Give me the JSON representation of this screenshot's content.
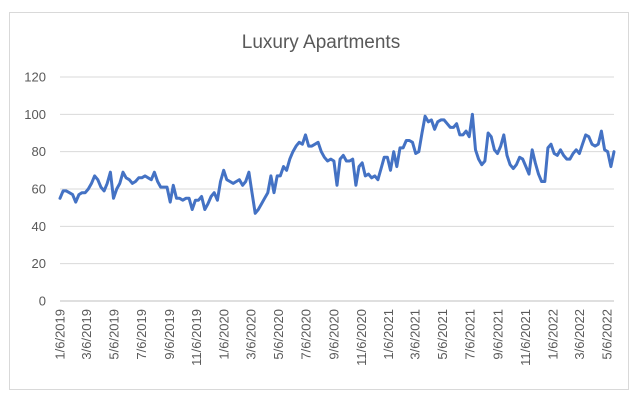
{
  "chart_data": {
    "type": "line",
    "title": "Luxury Apartments",
    "xlabel": "",
    "ylabel": "",
    "ylim": [
      0,
      120
    ],
    "y_ticks": [
      0,
      20,
      40,
      60,
      80,
      100,
      120
    ],
    "grid": true,
    "legend": "none",
    "series_color": "#4472C4",
    "x_tick_labels": [
      "1/6/2019",
      "3/6/2019",
      "5/6/2019",
      "7/6/2019",
      "9/6/2019",
      "11/6/2019",
      "1/6/2020",
      "3/6/2020",
      "5/6/2020",
      "7/6/2020",
      "9/6/2020",
      "11/6/2020",
      "1/6/2021",
      "3/6/2021",
      "5/6/2021",
      "7/6/2021",
      "9/6/2021",
      "11/6/2021",
      "1/6/2022",
      "3/6/2022",
      "5/6/2022"
    ],
    "start_date": "1/6/2019",
    "series": [
      {
        "values": [
          55,
          59,
          59,
          58,
          57,
          53,
          57,
          58,
          58,
          60,
          63,
          67,
          65,
          61,
          59,
          63,
          69,
          55,
          60,
          63,
          69,
          66,
          65,
          63,
          64,
          66,
          66,
          67,
          66,
          65,
          69,
          64,
          61,
          61,
          61,
          53,
          62,
          55,
          55,
          54,
          55,
          55,
          49,
          54,
          54,
          56,
          49,
          52,
          56,
          58,
          54,
          64,
          70,
          65,
          64,
          63,
          64,
          65,
          62,
          64,
          69,
          58,
          47,
          49,
          52,
          55,
          58,
          67,
          58,
          67,
          67,
          72,
          70,
          76,
          80,
          83,
          85,
          84,
          89,
          83,
          83,
          84,
          85,
          80,
          77,
          75,
          76,
          75,
          62,
          76,
          78,
          75,
          75,
          76,
          62,
          72,
          74,
          67,
          68,
          66,
          67,
          65,
          71,
          77,
          77,
          70,
          80,
          72,
          82,
          82,
          86,
          86,
          85,
          79,
          80,
          90,
          99,
          96,
          97,
          92,
          96,
          97,
          97,
          95,
          93,
          93,
          95,
          89,
          89,
          91,
          88,
          100,
          81,
          76,
          73,
          75,
          90,
          88,
          81,
          79,
          83,
          89,
          78,
          73,
          71,
          73,
          77,
          76,
          72,
          68,
          81,
          74,
          68,
          64,
          64,
          82,
          84,
          79,
          78,
          81,
          78,
          76,
          76,
          79,
          81,
          79,
          84,
          89,
          88,
          84,
          83,
          84,
          91,
          81,
          80,
          72,
          80
        ]
      }
    ]
  }
}
